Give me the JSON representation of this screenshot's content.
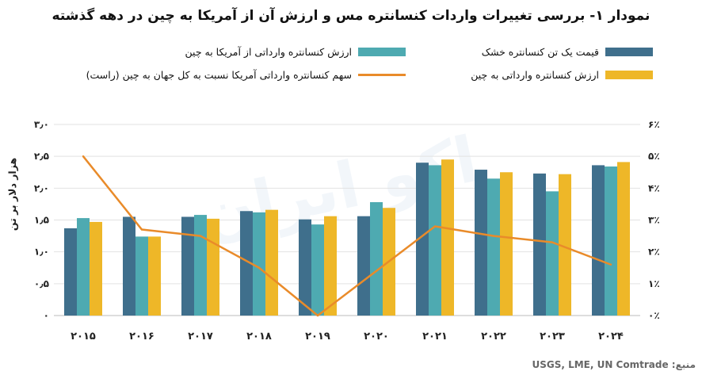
{
  "chart_data": {
    "type": "bar",
    "title": "نمودار ۱- بررسی تغییرات واردات کنسانتره مس و ارزش آن از آمریکا به چین در دهه گذشته",
    "ylabel": "هزار دلار بر تن",
    "categories": [
      "۲۰۱۵",
      "۲۰۱۶",
      "۲۰۱۷",
      "۲۰۱۸",
      "۲۰۱۹",
      "۲۰۲۰",
      "۲۰۲۱",
      "۲۰۲۲",
      "۲۰۲۳",
      "۲۰۲۴"
    ],
    "ylim": [
      0,
      3
    ],
    "y_ticks": [
      "۰",
      "۰٫۵",
      "۱٫۰",
      "۱٫۵",
      "۲٫۰",
      "۲٫۵",
      "۳٫۰"
    ],
    "y2lim": [
      0,
      6
    ],
    "y2_ticks": [
      "۰٪",
      "۱٪",
      "۲٪",
      "۳٪",
      "۴٪",
      "۵٪",
      "۶٪"
    ],
    "series": [
      {
        "name": "قیمت یک تن کنسانتره خشک",
        "color": "#3f6f8c",
        "values": [
          1.37,
          1.55,
          1.55,
          1.64,
          1.51,
          1.56,
          2.4,
          2.29,
          2.23,
          2.36
        ]
      },
      {
        "name": "ارزش کنسانتره وارداتی از آمریکا به چین",
        "color": "#4eaab1",
        "values": [
          1.53,
          1.24,
          1.58,
          1.62,
          1.43,
          1.78,
          2.36,
          2.15,
          1.95,
          2.34
        ]
      },
      {
        "name": "ارزش کنسانتره وارداتی به چین",
        "color": "#eeb728",
        "values": [
          1.47,
          1.24,
          1.52,
          1.66,
          1.56,
          1.69,
          2.45,
          2.25,
          2.22,
          2.41
        ]
      },
      {
        "name": "سهم کنسانتره وارداتی آمریکا نسبت به کل جهان به چین (راست)",
        "color": "#e98b2a",
        "type": "line",
        "axis": "right",
        "values": [
          5.0,
          2.7,
          2.5,
          1.5,
          0.0,
          1.4,
          2.8,
          2.5,
          2.3,
          1.6
        ]
      }
    ],
    "grid": true,
    "legend_position": "top"
  },
  "source": "منبع: USGS, LME, UN Comtrade",
  "watermark": "اکو ایران"
}
